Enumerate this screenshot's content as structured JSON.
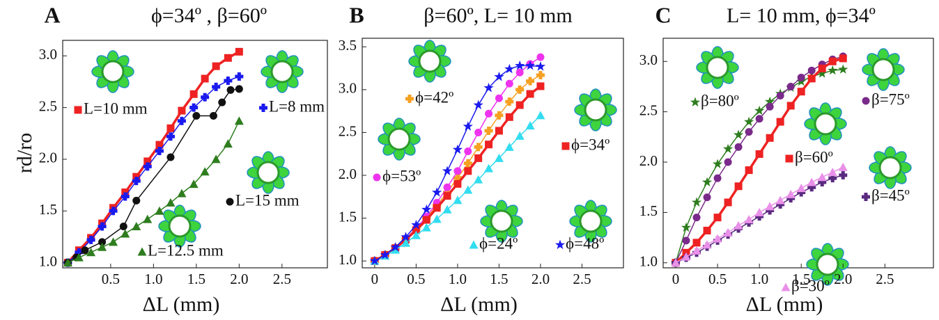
{
  "chart_data": [
    {
      "type": "line",
      "letter": "A",
      "title": "ϕ=34º , β=60º",
      "x_label": "ΔL (mm)",
      "y_label": "rd/ro",
      "xlim": [
        -0.06,
        3.03
      ],
      "ylim": [
        0.95,
        3.15
      ],
      "xticks": [
        0.5,
        {
          "value": 1.0,
          "label": "1.0"
        },
        1.5,
        {
          "value": 2.0,
          "label": "2.0"
        },
        2.5
      ],
      "yticks": [
        {
          "value": 1.0,
          "label": "1.0"
        },
        1.5,
        {
          "value": 2.0,
          "label": "2.0"
        },
        2.5,
        {
          "value": 3.0,
          "label": "3.0"
        }
      ],
      "series": [
        {
          "name": "L=10 mm",
          "color": "#ee2222",
          "marker": "square",
          "x": [
            0,
            0.13,
            0.27,
            0.4,
            0.53,
            0.67,
            0.8,
            0.93,
            1.07,
            1.2,
            1.33,
            1.47,
            1.6,
            1.73,
            1.87,
            2.0
          ],
          "values": [
            1.0,
            1.12,
            1.24,
            1.38,
            1.53,
            1.68,
            1.83,
            1.98,
            2.14,
            2.3,
            2.47,
            2.63,
            2.78,
            2.9,
            2.98,
            3.04
          ]
        },
        {
          "name": "L=8 mm",
          "color": "#1a1aee",
          "marker": "plus",
          "x": [
            0,
            0.13,
            0.27,
            0.4,
            0.53,
            0.67,
            0.8,
            0.93,
            1.07,
            1.2,
            1.33,
            1.47,
            1.6,
            1.73,
            1.87,
            2.0
          ],
          "values": [
            1.0,
            1.1,
            1.22,
            1.35,
            1.5,
            1.64,
            1.79,
            1.93,
            2.08,
            2.22,
            2.37,
            2.5,
            2.6,
            2.7,
            2.76,
            2.8
          ]
        },
        {
          "name": "L=15 mm",
          "color": "#111111",
          "marker": "circle",
          "x": [
            0,
            0.1,
            0.2,
            0.4,
            0.65,
            0.8,
            1.2,
            1.5,
            1.7,
            1.8,
            1.9,
            2.0
          ],
          "values": [
            1.0,
            1.05,
            1.12,
            1.2,
            1.35,
            1.6,
            2.02,
            2.42,
            2.42,
            2.55,
            2.67,
            2.68
          ]
        },
        {
          "name": "L=12.5 mm",
          "color": "#2e7d1e",
          "marker": "triangle",
          "x": [
            0,
            0.13,
            0.27,
            0.4,
            0.53,
            0.67,
            0.8,
            0.93,
            1.07,
            1.2,
            1.33,
            1.47,
            1.6,
            1.73,
            1.87,
            2.0
          ],
          "values": [
            1.0,
            1.05,
            1.1,
            1.15,
            1.2,
            1.28,
            1.35,
            1.42,
            1.5,
            1.58,
            1.67,
            1.76,
            1.88,
            2.0,
            2.15,
            2.37
          ]
        }
      ]
    },
    {
      "type": "line",
      "letter": "B",
      "title": "β=60º, L= 10 mm",
      "x_label": "ΔL (mm)",
      "xlim": [
        -0.15,
        3.0
      ],
      "ylim": [
        0.92,
        3.6
      ],
      "xticks": [
        0,
        0.5,
        {
          "value": 1.0,
          "label": "1.0"
        },
        1.5,
        {
          "value": 2.0,
          "label": "2.0"
        },
        2.5
      ],
      "yticks": [
        {
          "value": 1.0,
          "label": "1.0"
        },
        1.5,
        {
          "value": 2.0,
          "label": "2.0"
        },
        2.5,
        {
          "value": 3.0,
          "label": "3.0"
        },
        3.5
      ],
      "series": [
        {
          "name": "ϕ=42º",
          "color": "#f5a020",
          "marker": "plus",
          "x": [
            0,
            0.125,
            0.25,
            0.375,
            0.5,
            0.625,
            0.75,
            0.875,
            1,
            1.125,
            1.25,
            1.375,
            1.5,
            1.625,
            1.75,
            1.875,
            2
          ],
          "values": [
            1.0,
            1.07,
            1.15,
            1.25,
            1.37,
            1.5,
            1.65,
            1.8,
            1.97,
            2.14,
            2.33,
            2.52,
            2.7,
            2.86,
            3.0,
            3.1,
            3.17
          ]
        },
        {
          "name": "ϕ=53º",
          "color": "#ee33ee",
          "marker": "circle",
          "x": [
            0,
            0.125,
            0.25,
            0.375,
            0.5,
            0.625,
            0.75,
            0.875,
            1,
            1.125,
            1.25,
            1.375,
            1.5,
            1.625,
            1.75,
            1.875,
            2
          ],
          "values": [
            1.0,
            1.07,
            1.15,
            1.26,
            1.38,
            1.52,
            1.68,
            1.86,
            2.05,
            2.28,
            2.5,
            2.72,
            2.9,
            3.07,
            3.2,
            3.3,
            3.38
          ]
        },
        {
          "name": "ϕ=34º",
          "color": "#ee2222",
          "marker": "square",
          "x": [
            0,
            0.125,
            0.25,
            0.375,
            0.5,
            0.625,
            0.75,
            0.875,
            1,
            1.125,
            1.25,
            1.375,
            1.5,
            1.625,
            1.75,
            1.875,
            2
          ],
          "values": [
            1.0,
            1.07,
            1.15,
            1.25,
            1.36,
            1.48,
            1.62,
            1.76,
            1.9,
            2.05,
            2.2,
            2.36,
            2.52,
            2.68,
            2.82,
            2.95,
            3.04
          ]
        },
        {
          "name": "ϕ=24º",
          "color": "#33ddf0",
          "marker": "triangle",
          "x": [
            0,
            0.125,
            0.25,
            0.375,
            0.5,
            0.625,
            0.75,
            0.875,
            1,
            1.125,
            1.25,
            1.375,
            1.5,
            1.625,
            1.75,
            1.875,
            2
          ],
          "values": [
            1.0,
            1.06,
            1.13,
            1.21,
            1.3,
            1.39,
            1.49,
            1.6,
            1.71,
            1.83,
            1.95,
            2.08,
            2.2,
            2.33,
            2.46,
            2.58,
            2.7
          ]
        },
        {
          "name": "ϕ=48º",
          "color": "#1a1aee",
          "marker": "star",
          "x": [
            0,
            0.125,
            0.25,
            0.375,
            0.5,
            0.625,
            0.75,
            0.875,
            1,
            1.125,
            1.25,
            1.375,
            1.5,
            1.625,
            1.75,
            1.875,
            2
          ],
          "values": [
            1.0,
            1.07,
            1.16,
            1.28,
            1.42,
            1.6,
            1.8,
            2.05,
            2.3,
            2.57,
            2.82,
            3.02,
            3.15,
            3.24,
            3.28,
            3.28,
            3.27
          ]
        }
      ]
    },
    {
      "type": "line",
      "letter": "C",
      "title": "L= 10 mm, ϕ=34º",
      "x_label": "ΔL (mm)",
      "xlim": [
        -0.15,
        3.08
      ],
      "ylim": [
        0.95,
        3.23
      ],
      "xticks": [
        0,
        0.5,
        {
          "value": 1.0,
          "label": "1.0"
        },
        1.5,
        {
          "value": 2.0,
          "label": "2.0"
        },
        2.5
      ],
      "yticks": [
        {
          "value": 1.0,
          "label": "1.0"
        },
        1.5,
        {
          "value": 2.0,
          "label": "2.0"
        },
        2.5,
        {
          "value": 3.0,
          "label": "3.0"
        }
      ],
      "series": [
        {
          "name": "β=80º",
          "color": "#2e7d1e",
          "marker": "star",
          "x": [
            0,
            0.125,
            0.25,
            0.375,
            0.5,
            0.625,
            0.75,
            0.875,
            1,
            1.125,
            1.25,
            1.375,
            1.5,
            1.625,
            1.75,
            1.875,
            2
          ],
          "values": [
            1.0,
            1.35,
            1.6,
            1.8,
            1.98,
            2.13,
            2.27,
            2.4,
            2.51,
            2.6,
            2.68,
            2.74,
            2.8,
            2.85,
            2.88,
            2.91,
            2.92
          ]
        },
        {
          "name": "β=75º",
          "color": "#7a2a8a",
          "marker": "circle",
          "x": [
            0,
            0.125,
            0.25,
            0.375,
            0.5,
            0.625,
            0.75,
            0.875,
            1,
            1.125,
            1.25,
            1.375,
            1.5,
            1.625,
            1.75,
            1.875,
            2
          ],
          "values": [
            1.0,
            1.22,
            1.45,
            1.65,
            1.84,
            2.0,
            2.15,
            2.3,
            2.43,
            2.55,
            2.66,
            2.75,
            2.84,
            2.91,
            2.97,
            3.02,
            3.05
          ]
        },
        {
          "name": "β=60º",
          "color": "#ee2222",
          "marker": "square",
          "x": [
            0,
            0.125,
            0.25,
            0.375,
            0.5,
            0.625,
            0.75,
            0.875,
            1,
            1.125,
            1.25,
            1.375,
            1.5,
            1.625,
            1.75,
            1.875,
            2
          ],
          "values": [
            1.0,
            1.1,
            1.2,
            1.32,
            1.45,
            1.6,
            1.76,
            1.92,
            2.08,
            2.24,
            2.4,
            2.56,
            2.7,
            2.83,
            2.93,
            3.0,
            3.03
          ]
        },
        {
          "name": "β=45º",
          "color": "#5a2a80",
          "marker": "plus",
          "x": [
            0,
            0.125,
            0.25,
            0.375,
            0.5,
            0.625,
            0.75,
            0.875,
            1,
            1.125,
            1.25,
            1.375,
            1.5,
            1.625,
            1.75,
            1.875,
            2
          ],
          "values": [
            1.0,
            1.05,
            1.1,
            1.16,
            1.22,
            1.28,
            1.34,
            1.4,
            1.46,
            1.52,
            1.58,
            1.64,
            1.7,
            1.75,
            1.8,
            1.84,
            1.87
          ]
        },
        {
          "name": "β=30º",
          "color": "#e990e8",
          "marker": "triangle",
          "x": [
            0,
            0.125,
            0.25,
            0.375,
            0.5,
            0.625,
            0.75,
            0.875,
            1,
            1.125,
            1.25,
            1.375,
            1.5,
            1.625,
            1.75,
            1.875,
            2
          ],
          "values": [
            1.0,
            1.06,
            1.12,
            1.18,
            1.24,
            1.3,
            1.37,
            1.43,
            1.5,
            1.56,
            1.62,
            1.68,
            1.74,
            1.8,
            1.85,
            1.9,
            1.95
          ]
        }
      ]
    }
  ]
}
